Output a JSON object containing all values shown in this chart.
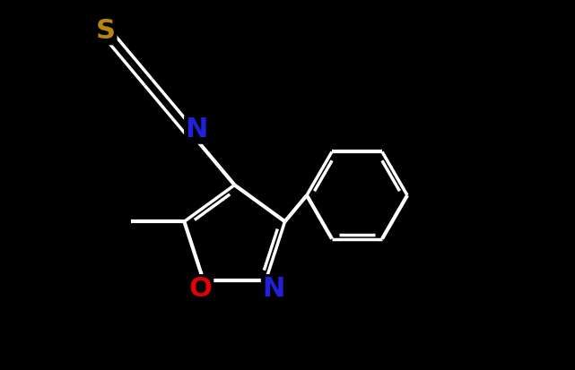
{
  "background_color": "#000000",
  "bond_color": "#000000",
  "white_bond": "#ffffff",
  "N_color": "#2121d9",
  "O_color": "#e00000",
  "S_color": "#b8860b",
  "line_width": 3.0,
  "double_lw": 2.5,
  "figsize": [
    6.41,
    4.13
  ],
  "dpi": 100,
  "xlim": [
    0,
    10
  ],
  "ylim": [
    0,
    7
  ],
  "font_size": 22
}
